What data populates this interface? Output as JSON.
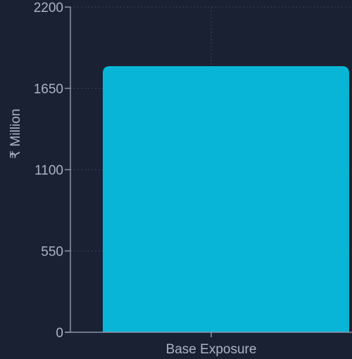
{
  "colors": {
    "background": "#1a2133",
    "bar": "#09b5d6",
    "axis": "#8c95a6",
    "grid": "#3a4358",
    "text": "#aab3c4"
  },
  "chart_data": {
    "type": "bar",
    "categories": [
      "Base Exposure"
    ],
    "values": [
      1800
    ],
    "title": "",
    "xlabel": "",
    "ylabel": "₹ Million",
    "ylim": [
      0,
      2200
    ],
    "yticks": [
      0,
      550,
      1100,
      1650,
      2200
    ],
    "grid": true,
    "legend": "none"
  }
}
